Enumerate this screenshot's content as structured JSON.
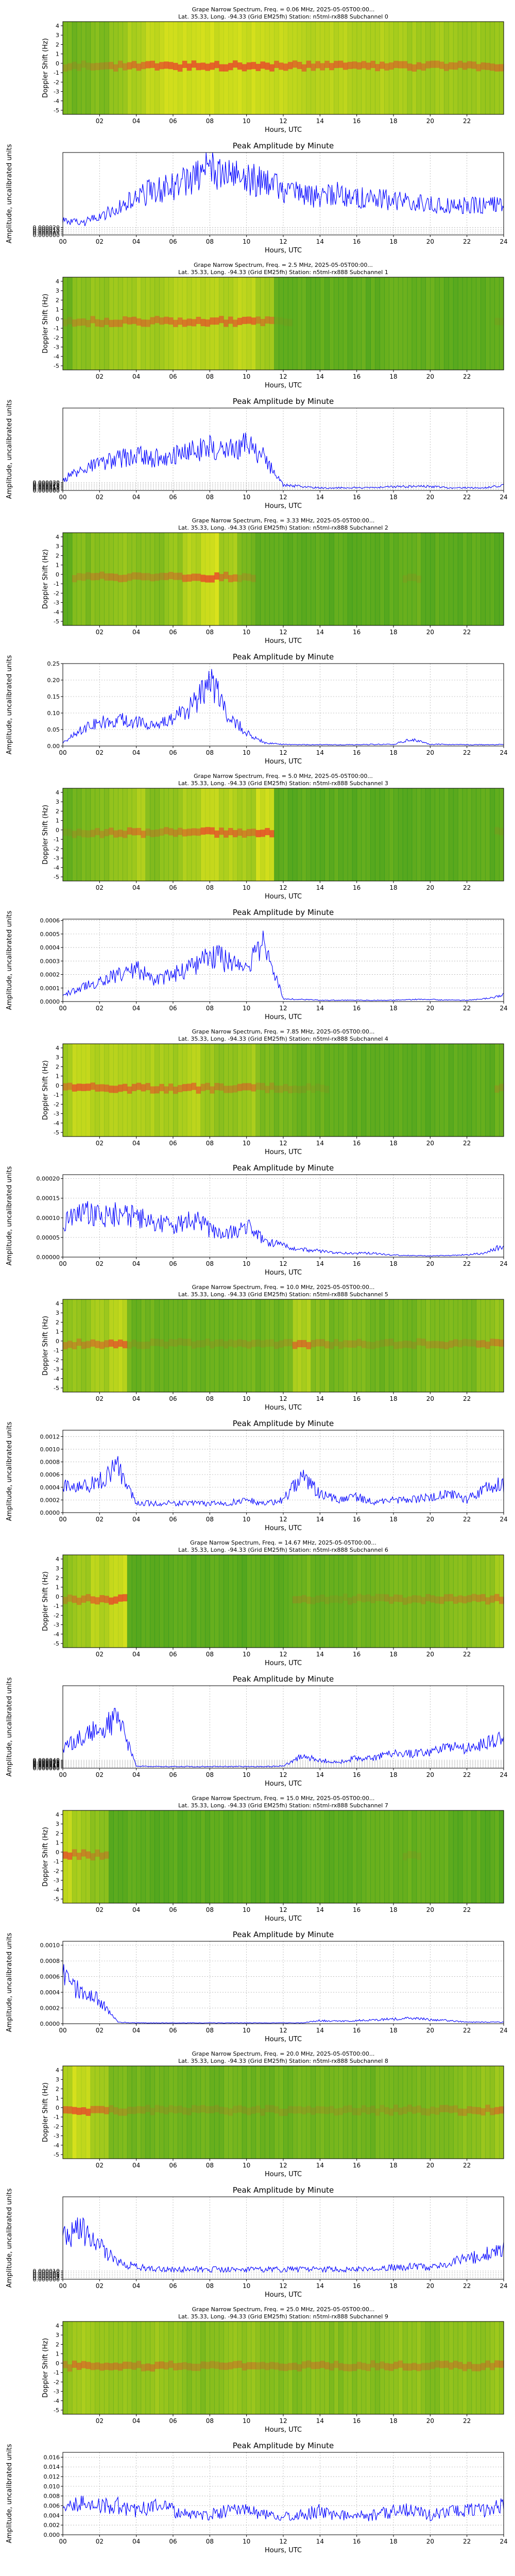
{
  "common": {
    "spectrum_title_line2": "Lat. 35.33, Long. -94.33 (Grid EM25fh) Station: n5tml-rx888",
    "amplitude_title": "Peak Amplitude by Minute",
    "xlabel": "Hours, UTC",
    "spectrum_ylabel": "Doppler Shift (Hz)",
    "amplitude_ylabel": "Amplitude, uncalibrated units",
    "spectrum_xticks": [
      "02",
      "04",
      "06",
      "08",
      "10",
      "12",
      "14",
      "16",
      "18",
      "20",
      "22"
    ],
    "amplitude_xticks": [
      "00",
      "02",
      "04",
      "06",
      "08",
      "10",
      "12",
      "14",
      "16",
      "18",
      "20",
      "22",
      "24"
    ],
    "doppler_ticks": [
      "4",
      "3",
      "2",
      "1",
      "0",
      "-1",
      "-2",
      "-3",
      "-4",
      "-5"
    ]
  },
  "colors": {
    "line": "#0000ff",
    "grid": "#b0b0b0",
    "spec_low": "#1f8f1f",
    "spec_mid": "#f4ee1c",
    "spec_high": "#e8452a"
  },
  "chart_data": [
    {
      "type": "heatmap",
      "subchannel": 0,
      "spectrum_title_line1": "Grape Narrow Spectrum, Freq. = 0.06 MHz, 2025-05-05T00:00...",
      "xlim": [
        0,
        24
      ],
      "ylim": [
        -5,
        5
      ],
      "colormap": "green-yellow-red",
      "amplitude_chart": {
        "type": "line",
        "title": "Peak Amplitude by Minute",
        "xlabel": "Hours, UTC",
        "ylabel": "Amplitude, uncalibrated units",
        "xlim": [
          0,
          24
        ],
        "ylim": [
          0,
          0.00022
        ],
        "ytick_labels": [
          "0.000000",
          "0.000005",
          "0.000010",
          "0.000015",
          "0.000020"
        ],
        "x": [
          0,
          1,
          2,
          3,
          4,
          5,
          6,
          7,
          8,
          9,
          10,
          11,
          12,
          13,
          14,
          15,
          16,
          17,
          18,
          19,
          20,
          21,
          22,
          23,
          24
        ],
        "y": [
          4e-05,
          3e-05,
          5e-05,
          7e-05,
          0.0001,
          0.00012,
          0.00013,
          0.00015,
          0.00018,
          0.00016,
          0.00015,
          0.00014,
          0.00012,
          0.00011,
          0.0001,
          0.00011,
          0.0001,
          0.0001,
          9e-05,
          9e-05,
          8e-05,
          8e-05,
          8e-05,
          8e-05,
          9e-05
        ]
      }
    },
    {
      "type": "heatmap",
      "subchannel": 1,
      "spectrum_title_line1": "Grape Narrow Spectrum, Freq. = 2.5 MHz, 2025-05-05T00:00...",
      "xlim": [
        0,
        24
      ],
      "ylim": [
        -5,
        5
      ],
      "colormap": "green-yellow-red",
      "amplitude_chart": {
        "type": "line",
        "title": "Peak Amplitude by Minute",
        "xlabel": "Hours, UTC",
        "ylabel": "Amplitude, uncalibrated units",
        "xlim": [
          0,
          24
        ],
        "ylim": [
          0,
          0.00031
        ],
        "ytick_labels": [
          "0.000000",
          "0.000005",
          "0.000010",
          "0.000015",
          "0.000020",
          "0.000025",
          "0.000030"
        ],
        "x": [
          0,
          1,
          2,
          3,
          4,
          5,
          6,
          7,
          8,
          9,
          10,
          11,
          12,
          13,
          14,
          15,
          16,
          17,
          18,
          19,
          20,
          21,
          22,
          23,
          24
        ],
        "y": [
          4e-05,
          8e-05,
          0.0001,
          0.00012,
          0.00013,
          0.00012,
          0.00014,
          0.00015,
          0.00016,
          0.00015,
          0.00017,
          0.00012,
          2e-05,
          1.5e-05,
          1e-05,
          1e-05,
          1e-05,
          1e-05,
          1.5e-05,
          1.5e-05,
          1.5e-05,
          1e-05,
          1e-05,
          1e-05,
          2e-05
        ]
      }
    },
    {
      "type": "heatmap",
      "subchannel": 2,
      "spectrum_title_line1": "Grape Narrow Spectrum, Freq. = 3.33 MHz, 2025-05-05T00:00...",
      "xlim": [
        0,
        24
      ],
      "ylim": [
        -5,
        5
      ],
      "colormap": "green-yellow-red",
      "amplitude_chart": {
        "type": "line",
        "title": "Peak Amplitude by Minute",
        "xlabel": "Hours, UTC",
        "ylabel": "Amplitude, uncalibrated units",
        "xlim": [
          0,
          24
        ],
        "ylim": [
          0,
          0.25
        ],
        "ytick_labels": [
          "0.00",
          "0.05",
          "0.10",
          "0.15",
          "0.20",
          "0.25"
        ],
        "x": [
          0,
          1,
          2,
          3,
          4,
          5,
          6,
          7,
          8,
          9,
          10,
          11,
          12,
          13,
          14,
          15,
          16,
          17,
          18,
          19,
          20,
          21,
          22,
          23,
          24
        ],
        "y": [
          0.01,
          0.05,
          0.07,
          0.08,
          0.07,
          0.06,
          0.08,
          0.12,
          0.2,
          0.1,
          0.04,
          0.01,
          0.005,
          0.004,
          0.004,
          0.004,
          0.004,
          0.005,
          0.005,
          0.02,
          0.005,
          0.005,
          0.004,
          0.004,
          0.005
        ]
      }
    },
    {
      "type": "heatmap",
      "subchannel": 3,
      "spectrum_title_line1": "Grape Narrow Spectrum, Freq. = 5.0 MHz, 2025-05-05T00:00...",
      "xlim": [
        0,
        24
      ],
      "ylim": [
        -5,
        5
      ],
      "colormap": "green-yellow-red",
      "amplitude_chart": {
        "type": "line",
        "title": "Peak Amplitude by Minute",
        "xlabel": "Hours, UTC",
        "ylabel": "Amplitude, uncalibrated units",
        "xlim": [
          0,
          24
        ],
        "ylim": [
          0,
          0.00061
        ],
        "ytick_labels": [
          "0.0000",
          "0.0001",
          "0.0002",
          "0.0003",
          "0.0004",
          "0.0005",
          "0.0006"
        ],
        "x": [
          0,
          1,
          2,
          3,
          4,
          5,
          6,
          7,
          8,
          9,
          10,
          11,
          12,
          13,
          14,
          15,
          16,
          17,
          18,
          19,
          20,
          21,
          22,
          23,
          24
        ],
        "y": [
          5e-05,
          0.0001,
          0.00015,
          0.0002,
          0.00025,
          0.00015,
          0.0002,
          0.00025,
          0.00035,
          0.0003,
          0.00025,
          0.00045,
          2e-05,
          1.5e-05,
          1e-05,
          1e-05,
          1e-05,
          1e-05,
          1e-05,
          1.5e-05,
          1.5e-05,
          1e-05,
          1e-05,
          2e-05,
          5e-05
        ]
      }
    },
    {
      "type": "heatmap",
      "subchannel": 4,
      "spectrum_title_line1": "Grape Narrow Spectrum, Freq. = 7.85 MHz, 2025-05-05T00:00...",
      "xlim": [
        0,
        24
      ],
      "ylim": [
        -5,
        5
      ],
      "colormap": "green-yellow-red",
      "amplitude_chart": {
        "type": "line",
        "title": "Peak Amplitude by Minute",
        "xlabel": "Hours, UTC",
        "ylabel": "Amplitude, uncalibrated units",
        "xlim": [
          0,
          24
        ],
        "ylim": [
          0,
          0.00021
        ],
        "ytick_labels": [
          "0.00000",
          "0.00005",
          "0.00010",
          "0.00015",
          "0.00020"
        ],
        "x": [
          0,
          1,
          2,
          3,
          4,
          5,
          6,
          7,
          8,
          9,
          10,
          11,
          12,
          13,
          14,
          15,
          16,
          17,
          18,
          19,
          20,
          21,
          22,
          23,
          24
        ],
        "y": [
          8e-05,
          0.00012,
          0.0001,
          0.00011,
          0.0001,
          9e-05,
          8e-05,
          0.0001,
          7e-05,
          6e-05,
          8e-05,
          4e-05,
          3e-05,
          2e-05,
          1.5e-05,
          1e-05,
          1e-05,
          1e-05,
          5e-06,
          4e-06,
          3e-06,
          4e-06,
          6e-06,
          1e-05,
          3e-05
        ]
      }
    },
    {
      "type": "heatmap",
      "subchannel": 5,
      "spectrum_title_line1": "Grape Narrow Spectrum, Freq. = 10.0 MHz, 2025-05-05T00:00...",
      "xlim": [
        0,
        24
      ],
      "ylim": [
        -5,
        5
      ],
      "colormap": "green-yellow-red",
      "amplitude_chart": {
        "type": "line",
        "title": "Peak Amplitude by Minute",
        "xlabel": "Hours, UTC",
        "ylabel": "Amplitude, uncalibrated units",
        "xlim": [
          0,
          24
        ],
        "ylim": [
          0,
          0.0013
        ],
        "ytick_labels": [
          "0.0000",
          "0.0002",
          "0.0004",
          "0.0006",
          "0.0008",
          "0.0010",
          "0.0012"
        ],
        "x": [
          0,
          1,
          2,
          3,
          4,
          5,
          6,
          7,
          8,
          9,
          10,
          11,
          12,
          13,
          14,
          15,
          16,
          17,
          18,
          19,
          20,
          21,
          22,
          23,
          24
        ],
        "y": [
          0.0004,
          0.0004,
          0.0005,
          0.0007,
          0.00015,
          0.00015,
          0.00015,
          0.00015,
          0.00014,
          0.00015,
          0.0002,
          0.00015,
          0.0002,
          0.0006,
          0.0003,
          0.0002,
          0.00025,
          0.00015,
          0.0002,
          0.0002,
          0.00025,
          0.0003,
          0.0002,
          0.0004,
          0.00045
        ]
      }
    },
    {
      "type": "heatmap",
      "subchannel": 6,
      "spectrum_title_line1": "Grape Narrow Spectrum, Freq. = 14.67 MHz, 2025-05-05T00:00...",
      "xlim": [
        0,
        24
      ],
      "ylim": [
        -5,
        5
      ],
      "colormap": "green-yellow-red",
      "amplitude_chart": {
        "type": "line",
        "title": "Peak Amplitude by Minute",
        "xlabel": "Hours, UTC",
        "ylabel": "Amplitude, uncalibrated units",
        "xlim": [
          0,
          24
        ],
        "ylim": [
          0,
          0.00041
        ],
        "ytick_labels": [
          "0.000000",
          "0.000005",
          "0.000010",
          "0.000015",
          "0.000020",
          "0.000025",
          "0.000030",
          "0.000035",
          "0.000040"
        ],
        "x": [
          0,
          1,
          2,
          3,
          4,
          5,
          6,
          7,
          8,
          9,
          10,
          11,
          12,
          13,
          14,
          15,
          16,
          17,
          18,
          19,
          20,
          21,
          22,
          23,
          24
        ],
        "y": [
          0.0001,
          0.00015,
          0.0002,
          0.00025,
          1e-05,
          8e-06,
          8e-06,
          8e-06,
          8e-06,
          8e-06,
          8e-06,
          8e-06,
          1e-05,
          6e-05,
          4e-05,
          3e-05,
          5e-05,
          5e-05,
          8e-05,
          7e-05,
          8e-05,
          0.0001,
          0.0001,
          0.00012,
          0.00015
        ]
      }
    },
    {
      "type": "heatmap",
      "subchannel": 7,
      "spectrum_title_line1": "Grape Narrow Spectrum, Freq. = 15.0 MHz, 2025-05-05T00:00...",
      "xlim": [
        0,
        24
      ],
      "ylim": [
        -5,
        5
      ],
      "colormap": "green-yellow-red",
      "amplitude_chart": {
        "type": "line",
        "title": "Peak Amplitude by Minute",
        "xlabel": "Hours, UTC",
        "ylabel": "Amplitude, uncalibrated units",
        "xlim": [
          0,
          24
        ],
        "ylim": [
          0,
          0.00105
        ],
        "ytick_labels": [
          "0.0000",
          "0.0002",
          "0.0004",
          "0.0006",
          "0.0008",
          "0.0010"
        ],
        "x": [
          0,
          1,
          2,
          3,
          4,
          5,
          6,
          7,
          8,
          9,
          10,
          11,
          12,
          13,
          14,
          15,
          16,
          17,
          18,
          19,
          20,
          21,
          22,
          23,
          24
        ],
        "y": [
          0.0006,
          0.0004,
          0.0003,
          2e-05,
          1e-05,
          1e-05,
          1e-05,
          1e-05,
          1e-05,
          1e-05,
          1e-05,
          1e-05,
          1e-05,
          1e-05,
          4e-05,
          3e-05,
          4e-05,
          5e-05,
          6e-05,
          7e-05,
          5e-05,
          4e-05,
          2e-05,
          2e-05,
          2e-05
        ]
      }
    },
    {
      "type": "heatmap",
      "subchannel": 8,
      "spectrum_title_line1": "Grape Narrow Spectrum, Freq. = 20.0 MHz, 2025-05-05T00:00...",
      "xlim": [
        0,
        24
      ],
      "ylim": [
        -5,
        5
      ],
      "colormap": "green-yellow-red",
      "amplitude_chart": {
        "type": "line",
        "title": "Peak Amplitude by Minute",
        "xlabel": "Hours, UTC",
        "ylabel": "Amplitude, uncalibrated units",
        "xlim": [
          0,
          24
        ],
        "ylim": [
          0,
          0.0001
        ],
        "ytick_labels": [
          "0.000000",
          "0.000002",
          "0.000004",
          "0.000006",
          "0.000008",
          "0.000010"
        ],
        "x": [
          0,
          1,
          2,
          3,
          4,
          5,
          6,
          7,
          8,
          9,
          10,
          11,
          12,
          13,
          14,
          15,
          16,
          17,
          18,
          19,
          20,
          21,
          22,
          23,
          24
        ],
        "y": [
          5e-05,
          6e-05,
          4e-05,
          2e-05,
          1.5e-05,
          1.2e-05,
          1.2e-05,
          1.2e-05,
          1.2e-05,
          1.2e-05,
          1.2e-05,
          1.2e-05,
          1.2e-05,
          1.2e-05,
          1.2e-05,
          1.2e-05,
          1.2e-05,
          1.2e-05,
          1.5e-05,
          1.5e-05,
          1.5e-05,
          2e-05,
          2.5e-05,
          3e-05,
          4e-05
        ]
      }
    },
    {
      "type": "heatmap",
      "subchannel": 9,
      "spectrum_title_line1": "Grape Narrow Spectrum, Freq. = 25.0 MHz, 2025-05-05T00:00...",
      "xlim": [
        0,
        24
      ],
      "ylim": [
        -5,
        5
      ],
      "colormap": "green-yellow-red",
      "amplitude_chart": {
        "type": "line",
        "title": "Peak Amplitude by Minute",
        "xlabel": "Hours, UTC",
        "ylabel": "Amplitude, uncalibrated units",
        "xlim": [
          0,
          24
        ],
        "ylim": [
          0,
          0.017
        ],
        "ytick_labels": [
          "0.000",
          "0.002",
          "0.004",
          "0.006",
          "0.008",
          "0.010",
          "0.012",
          "0.014",
          "0.016"
        ],
        "x": [
          0,
          1,
          2,
          3,
          4,
          5,
          6,
          7,
          8,
          9,
          10,
          11,
          12,
          13,
          14,
          15,
          16,
          17,
          18,
          19,
          20,
          21,
          22,
          23,
          24
        ],
        "y": [
          0.005,
          0.007,
          0.006,
          0.006,
          0.005,
          0.006,
          0.005,
          0.004,
          0.004,
          0.005,
          0.005,
          0.004,
          0.004,
          0.004,
          0.005,
          0.004,
          0.004,
          0.004,
          0.005,
          0.005,
          0.004,
          0.005,
          0.005,
          0.005,
          0.006
        ]
      }
    }
  ]
}
